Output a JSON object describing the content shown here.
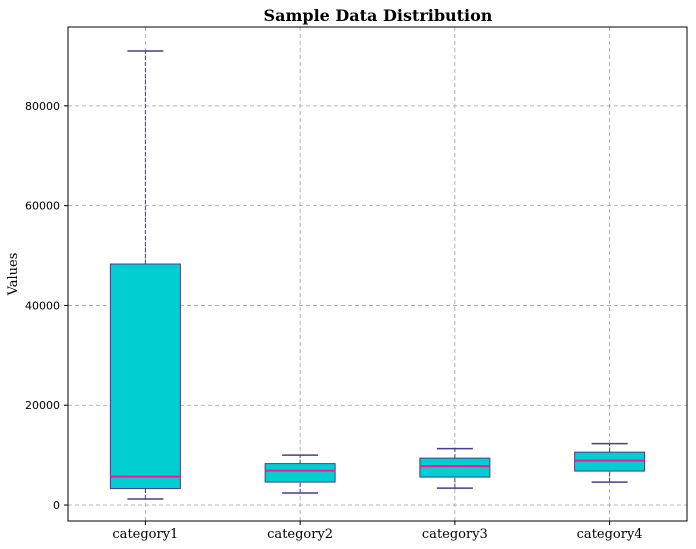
{
  "chart_data": {
    "type": "box",
    "title": "Sample Data Distribution",
    "xlabel": "",
    "ylabel": "Values",
    "ylim": [
      -3200,
      95800
    ],
    "yticks": [
      0,
      20000,
      40000,
      60000,
      80000
    ],
    "ytick_labels": [
      "0",
      "20000",
      "40000",
      "60000",
      "80000"
    ],
    "grid": true,
    "categories": [
      "category1",
      "category2",
      "category3",
      "category4"
    ],
    "boxes": [
      {
        "whisker_low": 1200,
        "q1": 3300,
        "median": 5700,
        "q3": 48300,
        "whisker_high": 91000
      },
      {
        "whisker_low": 2400,
        "q1": 4600,
        "median": 6900,
        "q3": 8300,
        "whisker_high": 10000
      },
      {
        "whisker_low": 3400,
        "q1": 5600,
        "median": 7800,
        "q3": 9400,
        "whisker_high": 11300
      },
      {
        "whisker_low": 4600,
        "q1": 6800,
        "median": 8900,
        "q3": 10600,
        "whisker_high": 12300
      }
    ],
    "colors": {
      "box_fill": "#00CED1",
      "box_edge": "#483D8B",
      "median": "#FF1493",
      "whisker": "#483D8B",
      "grid": "#a0a0a0"
    }
  }
}
